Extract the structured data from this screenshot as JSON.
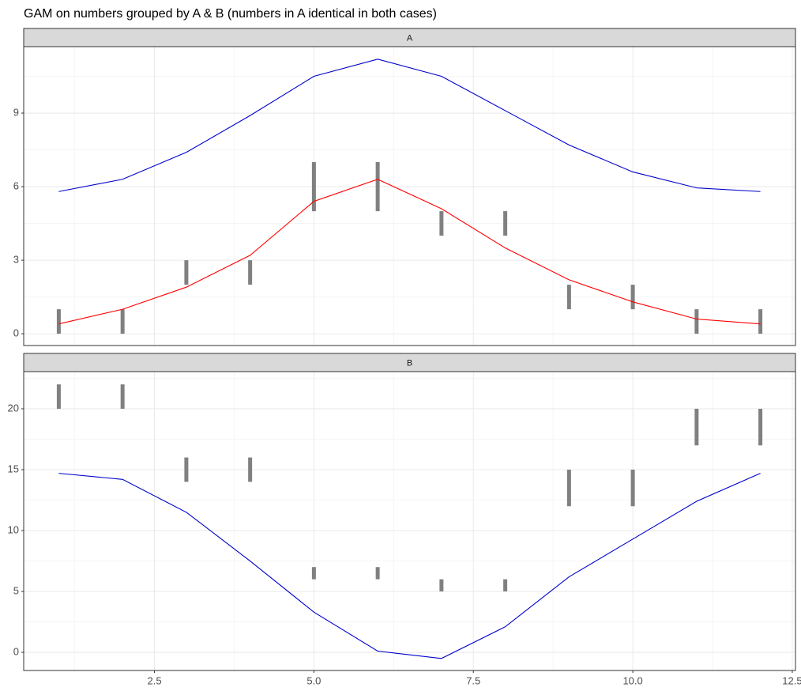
{
  "title": "GAM on numbers grouped by A & B (numbers in A identical in both cases)",
  "chart_data": [
    {
      "type": "line",
      "strip": "A",
      "x": [
        1,
        2,
        3,
        4,
        5,
        6,
        7,
        8,
        9,
        10,
        11,
        12
      ],
      "ranges": {
        "color": "#808080",
        "low": [
          0,
          0,
          2,
          2,
          5,
          5,
          4,
          4,
          1,
          1,
          0,
          0
        ],
        "high": [
          1,
          1,
          3,
          3,
          7,
          7,
          5,
          5,
          2,
          2,
          1,
          1
        ]
      },
      "series": [
        {
          "color": "#0000cd",
          "values": [
            5.8,
            6.3,
            7.4,
            8.9,
            10.5,
            11.2,
            10.5,
            9.1,
            7.7,
            6.6,
            5.95,
            5.8
          ]
        },
        {
          "color": "#ff0000",
          "values": [
            0.4,
            1.0,
            1.9,
            3.2,
            5.4,
            6.3,
            5.1,
            3.5,
            2.2,
            1.3,
            0.6,
            0.4
          ]
        }
      ],
      "xlim": [
        0.45,
        12.55
      ],
      "xticks": [
        2.5,
        5,
        7.5,
        10,
        12.5
      ],
      "ylim": [
        -0.48,
        11.71
      ],
      "yticks": [
        0,
        3,
        6,
        9
      ],
      "grid": true
    },
    {
      "type": "line",
      "strip": "B",
      "x": [
        1,
        2,
        3,
        4,
        5,
        6,
        7,
        8,
        9,
        10,
        11,
        12
      ],
      "ranges": {
        "color": "#808080",
        "low": [
          20,
          20,
          14,
          14,
          6,
          6,
          5,
          5,
          12,
          12,
          17,
          17
        ],
        "high": [
          22,
          22,
          16,
          16,
          7,
          7,
          6,
          6,
          15,
          15,
          20,
          20
        ]
      },
      "series": [
        {
          "color": "#0000cd",
          "values": [
            14.7,
            14.2,
            11.5,
            7.5,
            3.3,
            0.1,
            -0.5,
            2.1,
            6.2,
            9.3,
            12.4,
            14.7
          ]
        }
      ],
      "xlim": [
        0.45,
        12.55
      ],
      "xticks": [
        {
          "value": 2.5,
          "label": "2.5"
        },
        {
          "value": 5,
          "label": "5.0"
        },
        {
          "value": 7.5,
          "label": "7.5"
        },
        {
          "value": 10,
          "label": "10.0"
        },
        {
          "value": 12.5,
          "label": "12.5"
        }
      ],
      "ylim": [
        -1.49,
        23.05
      ],
      "yticks": [
        0,
        5,
        10,
        15,
        20
      ],
      "grid": true
    }
  ]
}
